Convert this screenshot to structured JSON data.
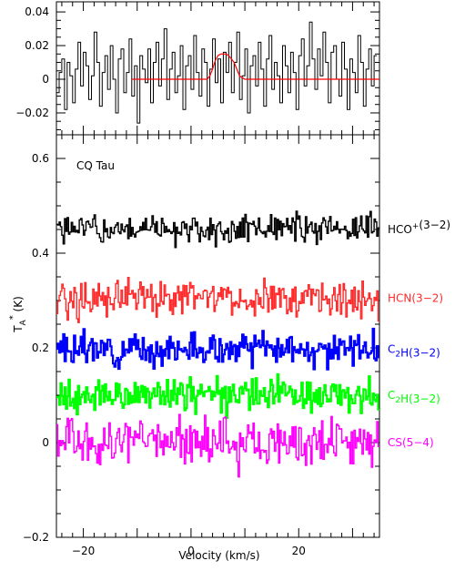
{
  "chart_data": [
    {
      "type": "line",
      "panel": "top",
      "title": "",
      "xlabel": "",
      "ylabel": "",
      "xlim": [
        -25,
        35
      ],
      "ylim": [
        -0.033,
        0.046
      ],
      "yticks": [
        -0.02,
        0,
        0.02,
        0.04
      ],
      "ytick_labels": [
        "−0.02",
        "0",
        "0.02",
        "0.04"
      ],
      "series": [
        {
          "style": "histogram",
          "color": "#000000",
          "x_start": -24.75,
          "x_step": 0.5,
          "values": [
            -0.008,
            0.004,
            0.012,
            -0.018,
            0.01,
            0.002,
            -0.014,
            0.006,
            0.022,
            -0.004,
            0.016,
            0.008,
            -0.012,
            0.002,
            0.028,
            0.01,
            -0.016,
            0.004,
            0.014,
            -0.006,
            0.02,
            0.0,
            -0.02,
            0.012,
            0.018,
            -0.008,
            0.004,
            0.024,
            -0.01,
            0.008,
            -0.026,
            0.014,
            0.006,
            -0.002,
            0.018,
            -0.014,
            0.01,
            0.022,
            -0.004,
            0.012,
            0.03,
            -0.012,
            0.006,
            0.016,
            -0.008,
            0.002,
            0.02,
            -0.018,
            0.008,
            0.014,
            -0.006,
            0.026,
            0.004,
            -0.01,
            0.018,
            0.01,
            -0.016,
            0.006,
            0.024,
            -0.002,
            0.012,
            -0.014,
            0.016,
            0.004,
            0.022,
            -0.008,
            0.01,
            0.028,
            -0.012,
            0.002,
            0.018,
            -0.02,
            0.008,
            0.014,
            -0.004,
            0.022,
            0.006,
            -0.016,
            0.012,
            0.026,
            -0.006,
            0.01,
            0.002,
            -0.014,
            0.02,
            0.008,
            -0.008,
            0.016,
            0.004,
            -0.018,
            0.014,
            0.024,
            -0.004,
            0.008,
            0.034,
            0.012,
            -0.006,
            0.018,
            0.002,
            0.028,
            0.01,
            -0.014,
            0.016,
            0.02,
            0.0,
            -0.01,
            0.022,
            0.006,
            -0.018,
            0.012,
            0.004,
            -0.008,
            0.026,
            0.01,
            -0.016,
            0.006,
            0.018,
            -0.004,
            0.014
          ]
        },
        {
          "style": "line",
          "color": "#ff0000",
          "x": [
            -11,
            3,
            3.5,
            4,
            4.5,
            5,
            5.5,
            6,
            6.5,
            7,
            7.5,
            8,
            8.5,
            9,
            9.5,
            10,
            35
          ],
          "values": [
            0,
            0,
            0.002,
            0.006,
            0.011,
            0.014,
            0.015,
            0.015,
            0.015,
            0.014,
            0.012,
            0.01,
            0.006,
            0.002,
            0.001,
            0,
            0
          ]
        }
      ]
    },
    {
      "type": "line",
      "panel": "bottom",
      "title": "",
      "annotation": "CQ Tau",
      "xlabel": "Velocity (km/s)",
      "ylabel": "T",
      "ylabel_sub": "A",
      "ylabel_sup": "*",
      "ylabel_unit": " (K)",
      "xlim": [
        -25,
        35
      ],
      "ylim": [
        -0.2,
        0.65
      ],
      "xticks": [
        -20,
        0,
        20
      ],
      "xtick_labels": [
        "−20",
        "0",
        "20"
      ],
      "yticks": [
        -0.2,
        0,
        0.2,
        0.4,
        0.6
      ],
      "ytick_labels": [
        "−0.2",
        "0",
        "0.2",
        "0.4",
        "0.6"
      ],
      "series": [
        {
          "name_parts": [
            {
              "t": "HCO"
            },
            {
              "t": "+",
              "sup": true
            },
            {
              "t": "(3−2)"
            }
          ],
          "color": "#000000",
          "baseline": 0.45,
          "amplitude": 0.016,
          "seed": 1,
          "stroke": 1.4
        },
        {
          "name_parts": [
            {
              "t": "HCN(3−2)"
            }
          ],
          "color": "#ff2a2a",
          "baseline": 0.305,
          "amplitude": 0.02,
          "seed": 2,
          "stroke": 1.4
        },
        {
          "name_parts": [
            {
              "t": "C"
            },
            {
              "t": "2",
              "sub": true
            },
            {
              "t": "H(3−2)"
            }
          ],
          "color": "#0000ff",
          "baseline": 0.197,
          "amplitude": 0.016,
          "seed": 3,
          "stroke": 2.2
        },
        {
          "name_parts": [
            {
              "t": "C"
            },
            {
              "t": "2",
              "sub": true
            },
            {
              "t": "H(3−2)"
            }
          ],
          "color": "#00ff00",
          "baseline": 0.1,
          "amplitude": 0.018,
          "seed": 4,
          "stroke": 2.2
        },
        {
          "name_parts": [
            {
              "t": "CS(5−4)"
            }
          ],
          "color": "#ff00ff",
          "baseline": 0.0,
          "amplitude": 0.026,
          "seed": 5,
          "stroke": 1.4
        }
      ]
    }
  ]
}
